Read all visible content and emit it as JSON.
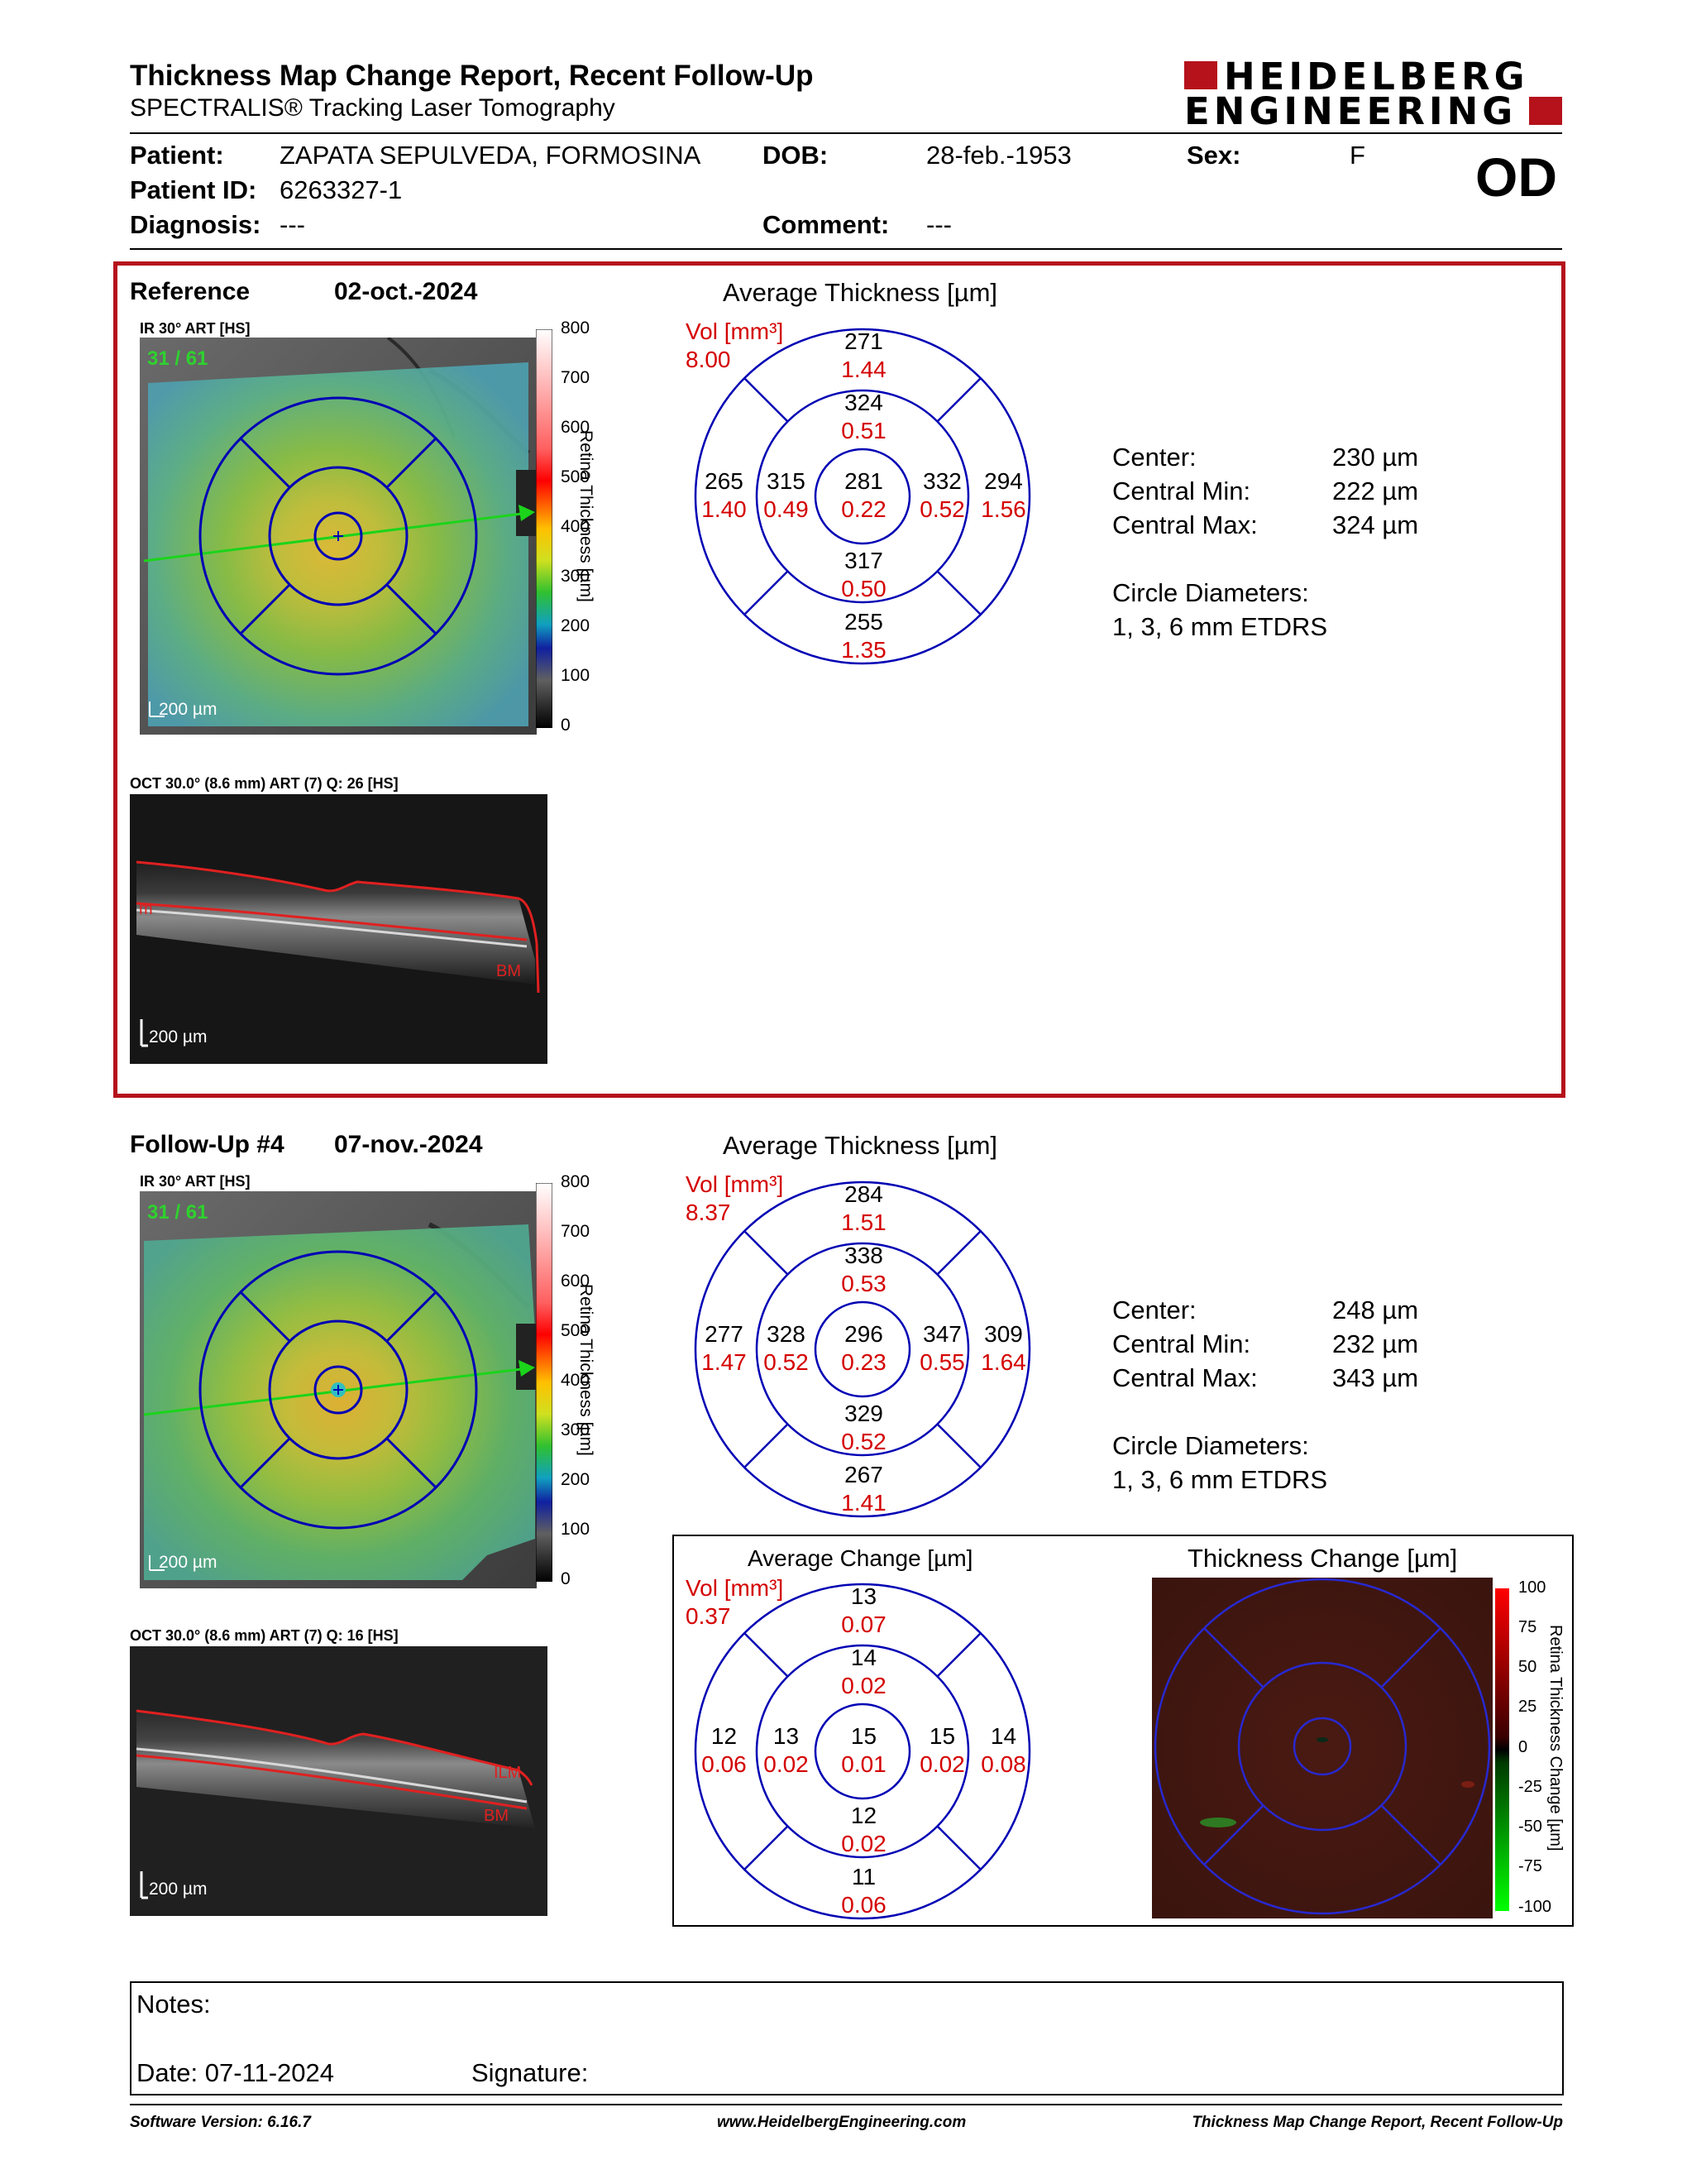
{
  "header": {
    "title": "Thickness Map Change Report, Recent Follow-Up",
    "subtitle": "SPECTRALIS® Tracking Laser Tomography",
    "logo_line1": "HEIDELBERG",
    "logo_line2": "ENGINEERING",
    "brand_color": "#b5121b"
  },
  "patient": {
    "patient_label": "Patient:",
    "patient_value": "ZAPATA SEPULVEDA, FORMOSINA",
    "dob_label": "DOB:",
    "dob_value": "28-feb.-1953",
    "sex_label": "Sex:",
    "sex_value": "F",
    "id_label": "Patient ID:",
    "id_value": "6263327-1",
    "diagnosis_label": "Diagnosis:",
    "diagnosis_value": "---",
    "comment_label": "Comment:",
    "comment_value": "---",
    "eye": "OD"
  },
  "reference": {
    "label": "Reference",
    "date": "02-oct.-2024",
    "ir_caption": "IR 30° ART [HS]",
    "frame_count": "31 / 61",
    "scale_ir": "200 µm",
    "colorbar_ticks": [
      "800",
      "700",
      "600",
      "500",
      "400",
      "300",
      "200",
      "100",
      "0"
    ],
    "colorbar_title": "Retina Thickness [µm]",
    "oct_caption": "OCT 30.0° (8.6 mm) ART (7) Q: 26 [HS]",
    "oct_scale": "200 µm",
    "oct_label_ilm": "m",
    "oct_label_bm": "BM",
    "avg_title": "Average Thickness [µm]",
    "vol_label": "Vol [mm³]",
    "vol_total": "8.00",
    "etdrs": {
      "outer_sup": [
        "271",
        "1.44"
      ],
      "inner_sup": [
        "324",
        "0.51"
      ],
      "outer_temp": [
        "265",
        "1.40"
      ],
      "inner_temp": [
        "315",
        "0.49"
      ],
      "center": [
        "281",
        "0.22"
      ],
      "inner_nasal": [
        "332",
        "0.52"
      ],
      "outer_nasal": [
        "294",
        "1.56"
      ],
      "inner_inf": [
        "317",
        "0.50"
      ],
      "outer_inf": [
        "255",
        "1.35"
      ]
    },
    "stats": [
      {
        "label": "Center:",
        "value": "230 µm"
      },
      {
        "label": "Central Min:",
        "value": "222 µm"
      },
      {
        "label": "Central Max:",
        "value": "324 µm"
      }
    ],
    "circle_label": "Circle Diameters:",
    "circle_value": "1, 3, 6 mm ETDRS"
  },
  "followup": {
    "label": "Follow-Up #4",
    "date": "07-nov.-2024",
    "ir_caption": "IR 30° ART [HS]",
    "frame_count": "31 / 61",
    "scale_ir": "200 µm",
    "colorbar_ticks": [
      "800",
      "700",
      "600",
      "500",
      "400",
      "300",
      "200",
      "100",
      "0"
    ],
    "colorbar_title": "Retina Thickness [µm]",
    "oct_caption": "OCT 30.0° (8.6 mm) ART (7) Q: 16 [HS]",
    "oct_scale": "200 µm",
    "oct_label_ilm": "ILM",
    "oct_label_bm": "BM",
    "avg_title": "Average Thickness [µm]",
    "vol_label": "Vol [mm³]",
    "vol_total": "8.37",
    "etdrs": {
      "outer_sup": [
        "284",
        "1.51"
      ],
      "inner_sup": [
        "338",
        "0.53"
      ],
      "outer_temp": [
        "277",
        "1.47"
      ],
      "inner_temp": [
        "328",
        "0.52"
      ],
      "center": [
        "296",
        "0.23"
      ],
      "inner_nasal": [
        "347",
        "0.55"
      ],
      "outer_nasal": [
        "309",
        "1.64"
      ],
      "inner_inf": [
        "329",
        "0.52"
      ],
      "outer_inf": [
        "267",
        "1.41"
      ]
    },
    "stats": [
      {
        "label": "Center:",
        "value": "248 µm"
      },
      {
        "label": "Central Min:",
        "value": "232 µm"
      },
      {
        "label": "Central Max:",
        "value": "343 µm"
      }
    ],
    "circle_label": "Circle Diameters:",
    "circle_value": "1, 3, 6 mm ETDRS"
  },
  "change": {
    "avg_title": "Average Change [µm]",
    "vol_label": "Vol [mm³]",
    "vol_total": "0.37",
    "etdrs": {
      "outer_sup": [
        "13",
        "0.07"
      ],
      "inner_sup": [
        "14",
        "0.02"
      ],
      "outer_temp": [
        "12",
        "0.06"
      ],
      "inner_temp": [
        "13",
        "0.02"
      ],
      "center": [
        "15",
        "0.01"
      ],
      "inner_nasal": [
        "15",
        "0.02"
      ],
      "outer_nasal": [
        "14",
        "0.08"
      ],
      "inner_inf": [
        "12",
        "0.02"
      ],
      "outer_inf": [
        "11",
        "0.06"
      ]
    },
    "map_title": "Thickness Change [µm]",
    "colorbar_ticks": [
      "100",
      "75",
      "50",
      "25",
      "0",
      "-25",
      "-50",
      "-75",
      "-100"
    ],
    "colorbar_title": "Retina Thickness Change [µm]"
  },
  "notes": {
    "notes_label": "Notes:",
    "date_label": "Date: 07-11-2024",
    "signature_label": "Signature:"
  },
  "footer": {
    "software": "Software Version: 6.16.7",
    "website": "www.HeidelbergEngineering.com",
    "report_name": "Thickness Map Change Report, Recent Follow-Up"
  },
  "colors": {
    "value_red": "#d40000",
    "circle_blue": "#0000b4",
    "text": "#000000"
  }
}
